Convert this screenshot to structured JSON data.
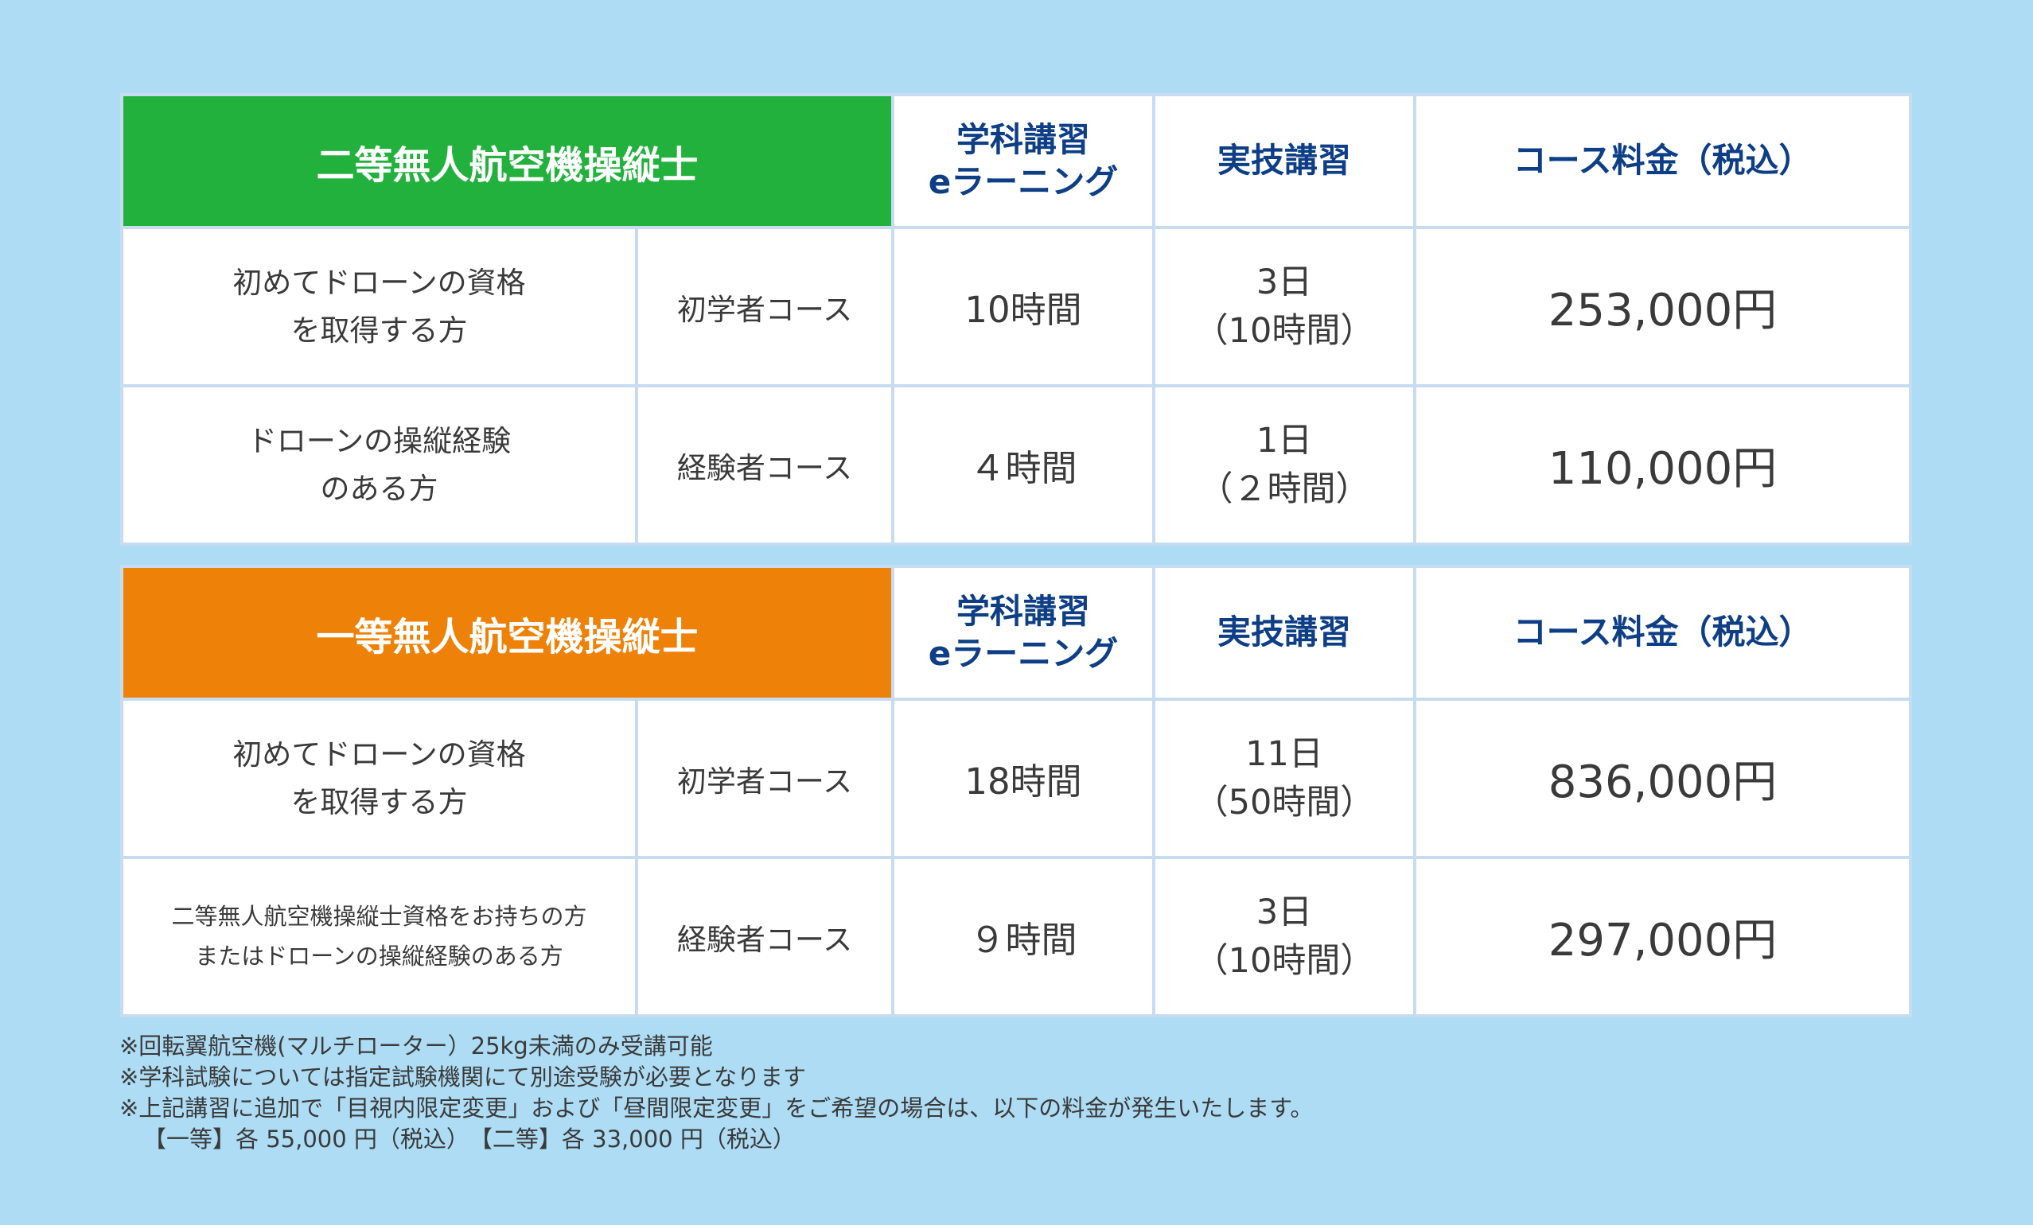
{
  "tables": [
    {
      "title": "二等無人航空機操縦士",
      "title_color": "#23b13e",
      "headers": {
        "elearning_line1": "学科講習",
        "elearning_line2": "eラーニング",
        "practical": "実技講習",
        "fee": "コース料金（税込）"
      },
      "rows": [
        {
          "target_line1": "初めてドローンの資格",
          "target_line2": "を取得する方",
          "course": "初学者コース",
          "elearning_hours": "10時間",
          "practical_days": "3日",
          "practical_hours": "（10時間）",
          "fee": "253,000円"
        },
        {
          "target_line1": "ドローンの操縦経験",
          "target_line2": "のある方",
          "course": "経験者コース",
          "elearning_hours": "４時間",
          "practical_days": "1日",
          "practical_hours": "（２時間）",
          "fee": "110,000円"
        }
      ]
    },
    {
      "title": "一等無人航空機操縦士",
      "title_color": "#ee8208",
      "headers": {
        "elearning_line1": "学科講習",
        "elearning_line2": "eラーニング",
        "practical": "実技講習",
        "fee": "コース料金（税込）"
      },
      "rows": [
        {
          "target_line1": "初めてドローンの資格",
          "target_line2": "を取得する方",
          "course": "初学者コース",
          "elearning_hours": "18時間",
          "practical_days": "11日",
          "practical_hours": "（50時間）",
          "fee": "836,000円"
        },
        {
          "target_line1": "二等無人航空機操縦士資格をお持ちの方",
          "target_line2": "またはドローンの操縦経験のある方",
          "course": "経験者コース",
          "elearning_hours": "９時間",
          "practical_days": "3日",
          "practical_hours": "（10時間）",
          "fee": "297,000円"
        }
      ]
    }
  ],
  "notes": [
    "※回転翼航空機(マルチローター）25kg未満のみ受講可能",
    "※学科試験については指定試験機関にて別途受験が必要となります",
    "※上記講習に追加で「目視内限定変更」および「昼間限定変更」をご希望の場合は、以下の料金が発生いたします。",
    "【一等】各 55,000 円（税込）　【二等】各 33,000 円（税込）"
  ],
  "colors": {
    "background": "#aedcf4",
    "header_text": "#0e3f86",
    "grid": "#c7dcf0"
  }
}
